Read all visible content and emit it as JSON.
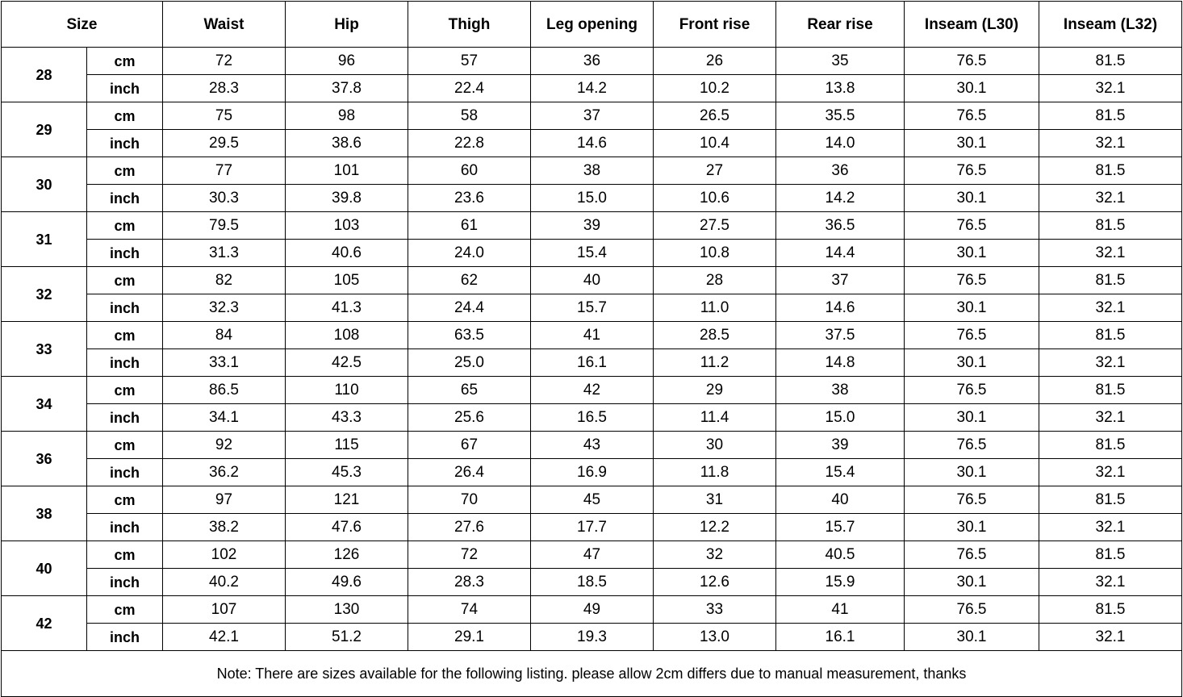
{
  "header": {
    "size": "Size",
    "waist": "Waist",
    "hip": "Hip",
    "thigh": "Thigh",
    "leg_opening": "Leg opening",
    "front_rise": "Front rise",
    "rear_rise": "Rear rise",
    "inseam_l30": "Inseam (L30)",
    "inseam_l32": "Inseam (L32)"
  },
  "rows": [
    {
      "size": "28",
      "cm_label": "cm",
      "inch_label": "inch",
      "cm": [
        "72",
        "96",
        "57",
        "36",
        "26",
        "35",
        "76.5",
        "81.5"
      ],
      "inch": [
        "28.3",
        "37.8",
        "22.4",
        "14.2",
        "10.2",
        "13.8",
        "30.1",
        "32.1"
      ]
    },
    {
      "size": "29",
      "cm_label": "cm",
      "inch_label": "inch",
      "cm": [
        "75",
        "98",
        "58",
        "37",
        "26.5",
        "35.5",
        "76.5",
        "81.5"
      ],
      "inch": [
        "29.5",
        "38.6",
        "22.8",
        "14.6",
        "10.4",
        "14.0",
        "30.1",
        "32.1"
      ]
    },
    {
      "size": "30",
      "cm_label": "cm",
      "inch_label": "inch",
      "cm": [
        "77",
        "101",
        "60",
        "38",
        "27",
        "36",
        "76.5",
        "81.5"
      ],
      "inch": [
        "30.3",
        "39.8",
        "23.6",
        "15.0",
        "10.6",
        "14.2",
        "30.1",
        "32.1"
      ]
    },
    {
      "size": "31",
      "cm_label": "cm",
      "inch_label": "inch",
      "cm": [
        "79.5",
        "103",
        "61",
        "39",
        "27.5",
        "36.5",
        "76.5",
        "81.5"
      ],
      "inch": [
        "31.3",
        "40.6",
        "24.0",
        "15.4",
        "10.8",
        "14.4",
        "30.1",
        "32.1"
      ]
    },
    {
      "size": "32",
      "cm_label": "cm",
      "inch_label": "inch",
      "cm": [
        "82",
        "105",
        "62",
        "40",
        "28",
        "37",
        "76.5",
        "81.5"
      ],
      "inch": [
        "32.3",
        "41.3",
        "24.4",
        "15.7",
        "11.0",
        "14.6",
        "30.1",
        "32.1"
      ]
    },
    {
      "size": "33",
      "cm_label": "cm",
      "inch_label": "inch",
      "cm": [
        "84",
        "108",
        "63.5",
        "41",
        "28.5",
        "37.5",
        "76.5",
        "81.5"
      ],
      "inch": [
        "33.1",
        "42.5",
        "25.0",
        "16.1",
        "11.2",
        "14.8",
        "30.1",
        "32.1"
      ]
    },
    {
      "size": "34",
      "cm_label": "cm",
      "inch_label": "inch",
      "cm": [
        "86.5",
        "110",
        "65",
        "42",
        "29",
        "38",
        "76.5",
        "81.5"
      ],
      "inch": [
        "34.1",
        "43.3",
        "25.6",
        "16.5",
        "11.4",
        "15.0",
        "30.1",
        "32.1"
      ]
    },
    {
      "size": "36",
      "cm_label": "cm",
      "inch_label": "inch",
      "cm": [
        "92",
        "115",
        "67",
        "43",
        "30",
        "39",
        "76.5",
        "81.5"
      ],
      "inch": [
        "36.2",
        "45.3",
        "26.4",
        "16.9",
        "11.8",
        "15.4",
        "30.1",
        "32.1"
      ]
    },
    {
      "size": "38",
      "cm_label": "cm",
      "inch_label": "inch",
      "cm": [
        "97",
        "121",
        "70",
        "45",
        "31",
        "40",
        "76.5",
        "81.5"
      ],
      "inch": [
        "38.2",
        "47.6",
        "27.6",
        "17.7",
        "12.2",
        "15.7",
        "30.1",
        "32.1"
      ]
    },
    {
      "size": "40",
      "cm_label": "cm",
      "inch_label": "inch",
      "cm": [
        "102",
        "126",
        "72",
        "47",
        "32",
        "40.5",
        "76.5",
        "81.5"
      ],
      "inch": [
        "40.2",
        "49.6",
        "28.3",
        "18.5",
        "12.6",
        "15.9",
        "30.1",
        "32.1"
      ]
    },
    {
      "size": "42",
      "cm_label": "cm",
      "inch_label": "inch",
      "cm": [
        "107",
        "130",
        "74",
        "49",
        "33",
        "41",
        "76.5",
        "81.5"
      ],
      "inch": [
        "42.1",
        "51.2",
        "29.1",
        "19.3",
        "13.0",
        "16.1",
        "30.1",
        "32.1"
      ]
    }
  ],
  "note": "Note: There are sizes available for the following listing. please allow 2cm differs due to manual measurement, thanks"
}
